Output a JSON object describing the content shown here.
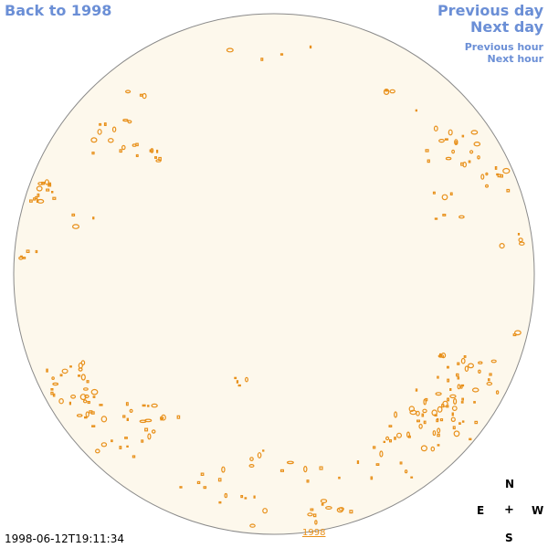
{
  "nav": {
    "back_label": "Back to 1998",
    "previous_day_label": "Previous day",
    "next_day_label": "Next day",
    "previous_hour_label": "Previous hour",
    "next_hour_label": "Next hour"
  },
  "compass": {
    "north": "N",
    "east": "E",
    "center": "+",
    "west": "W",
    "south": "S"
  },
  "footer": {
    "timestamp": "1998-06-12T19:11:34",
    "year_link": "1998"
  },
  "colors": {
    "link": "#6b8fd6",
    "disk_fill": "#fdf8ec",
    "disk_outline": "#8a8a8a",
    "contour": "#e8901a"
  }
}
